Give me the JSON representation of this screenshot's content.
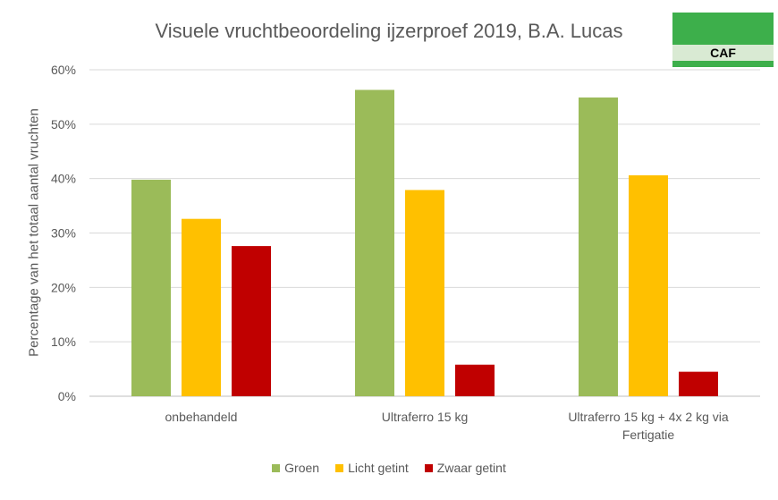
{
  "chart_data": {
    "type": "bar",
    "title": "Visuele vruchtbeoordeling ijzerproef 2019, B.A. Lucas",
    "ylabel": "Percentage van het totaal aantal vruchten",
    "xlabel": "",
    "ylim": [
      0,
      60
    ],
    "yticks": [
      "0%",
      "10%",
      "20%",
      "30%",
      "40%",
      "50%",
      "60%"
    ],
    "grid": true,
    "legend_position": "bottom",
    "categories": [
      [
        "onbehandeld"
      ],
      [
        "Ultraferro 15 kg"
      ],
      [
        "Ultraferro 15 kg + 4x 2 kg via",
        "Fertigatie"
      ]
    ],
    "series": [
      {
        "name": "Groen",
        "color": "#9BBB59",
        "values": [
          39.8,
          56.3,
          54.9
        ]
      },
      {
        "name": "Licht getint",
        "color": "#FFC000",
        "values": [
          32.6,
          37.9,
          40.6
        ]
      },
      {
        "name": "Zwaar getint",
        "color": "#C00000",
        "values": [
          27.6,
          5.8,
          4.5
        ]
      }
    ]
  },
  "logo": {
    "text": "CAF",
    "colors": [
      "#3DAF4B",
      "#D9EAD3"
    ]
  }
}
